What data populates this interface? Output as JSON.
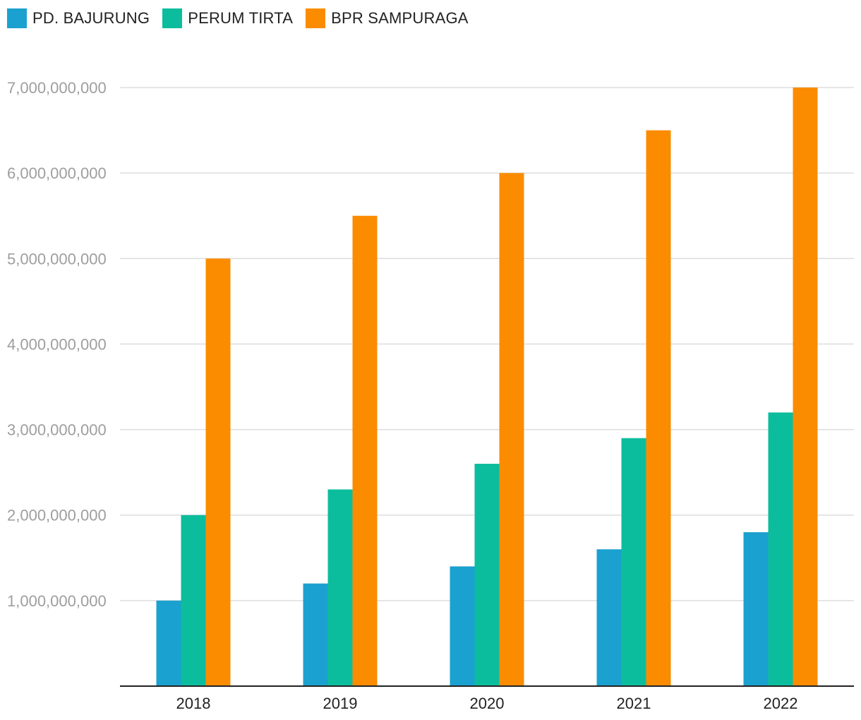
{
  "chart_data": {
    "type": "bar",
    "title": "",
    "xlabel": "",
    "ylabel": "",
    "categories": [
      "2018",
      "2019",
      "2020",
      "2021",
      "2022"
    ],
    "series": [
      {
        "name": "PD. BAJURUNG",
        "color": "#1ba1cf",
        "values": [
          1000000000,
          1200000000,
          1400000000,
          1600000000,
          1800000000
        ]
      },
      {
        "name": "PERUM TIRTA",
        "color": "#0cbd9d",
        "values": [
          2000000000,
          2300000000,
          2600000000,
          2900000000,
          3200000000
        ]
      },
      {
        "name": "BPR SAMPURAGA",
        "color": "#fb8c00",
        "values": [
          5000000000,
          5500000000,
          6000000000,
          6500000000,
          7000000000
        ]
      }
    ],
    "ylim": [
      0,
      7000000000
    ],
    "yticks": [
      1000000000,
      2000000000,
      3000000000,
      4000000000,
      5000000000,
      6000000000,
      7000000000
    ],
    "ytick_labels": [
      "1,000,000,000",
      "2,000,000,000",
      "3,000,000,000",
      "4,000,000,000",
      "5,000,000,000",
      "6,000,000,000",
      "7,000,000,000"
    ],
    "grid": true,
    "legend_position": "top-left"
  }
}
